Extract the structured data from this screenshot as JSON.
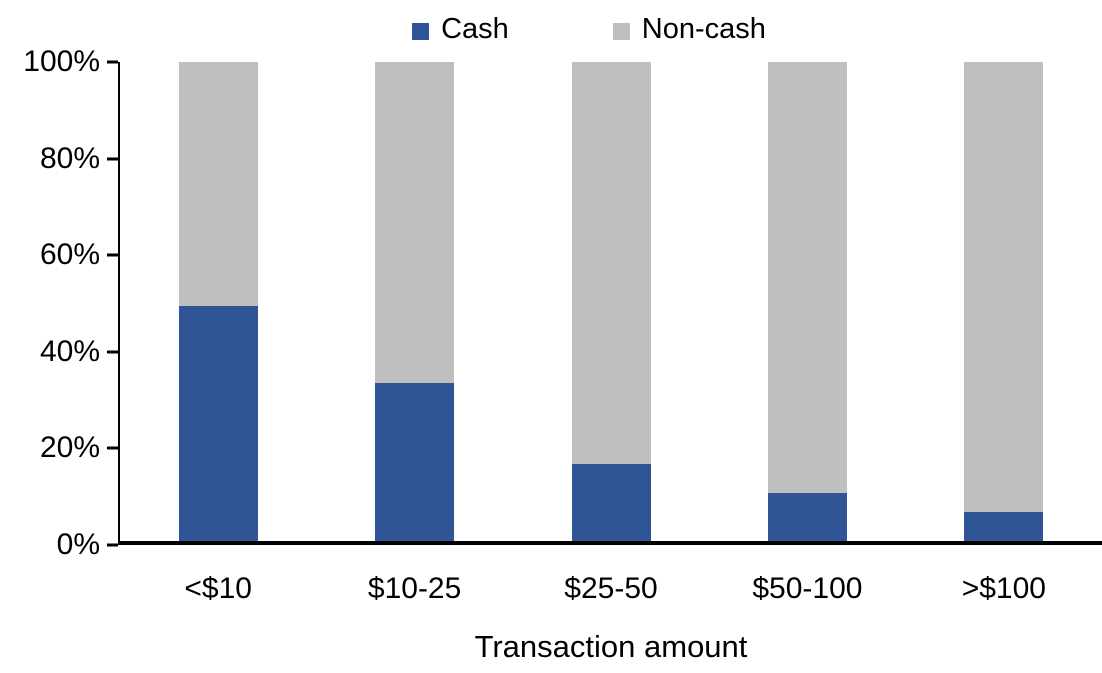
{
  "chart_data": {
    "type": "bar",
    "stacked": true,
    "percent_stacked": true,
    "title": "",
    "xlabel": "Transaction amount",
    "ylabel": "",
    "ylim": [
      0,
      100
    ],
    "y_ticks": [
      "0%",
      "20%",
      "40%",
      "60%",
      "80%",
      "100%"
    ],
    "grid": false,
    "legend_position": "top",
    "categories": [
      "<$10",
      "$10-25",
      "$25-50",
      "$50-100",
      ">$100"
    ],
    "series": [
      {
        "name": "Cash",
        "color": "#2F5597",
        "values": [
          49,
          33,
          16,
          10,
          6
        ]
      },
      {
        "name": "Non-cash",
        "color": "#BFBFBF",
        "values": [
          51,
          67,
          84,
          90,
          94
        ]
      }
    ],
    "axis_color": "#000000"
  }
}
